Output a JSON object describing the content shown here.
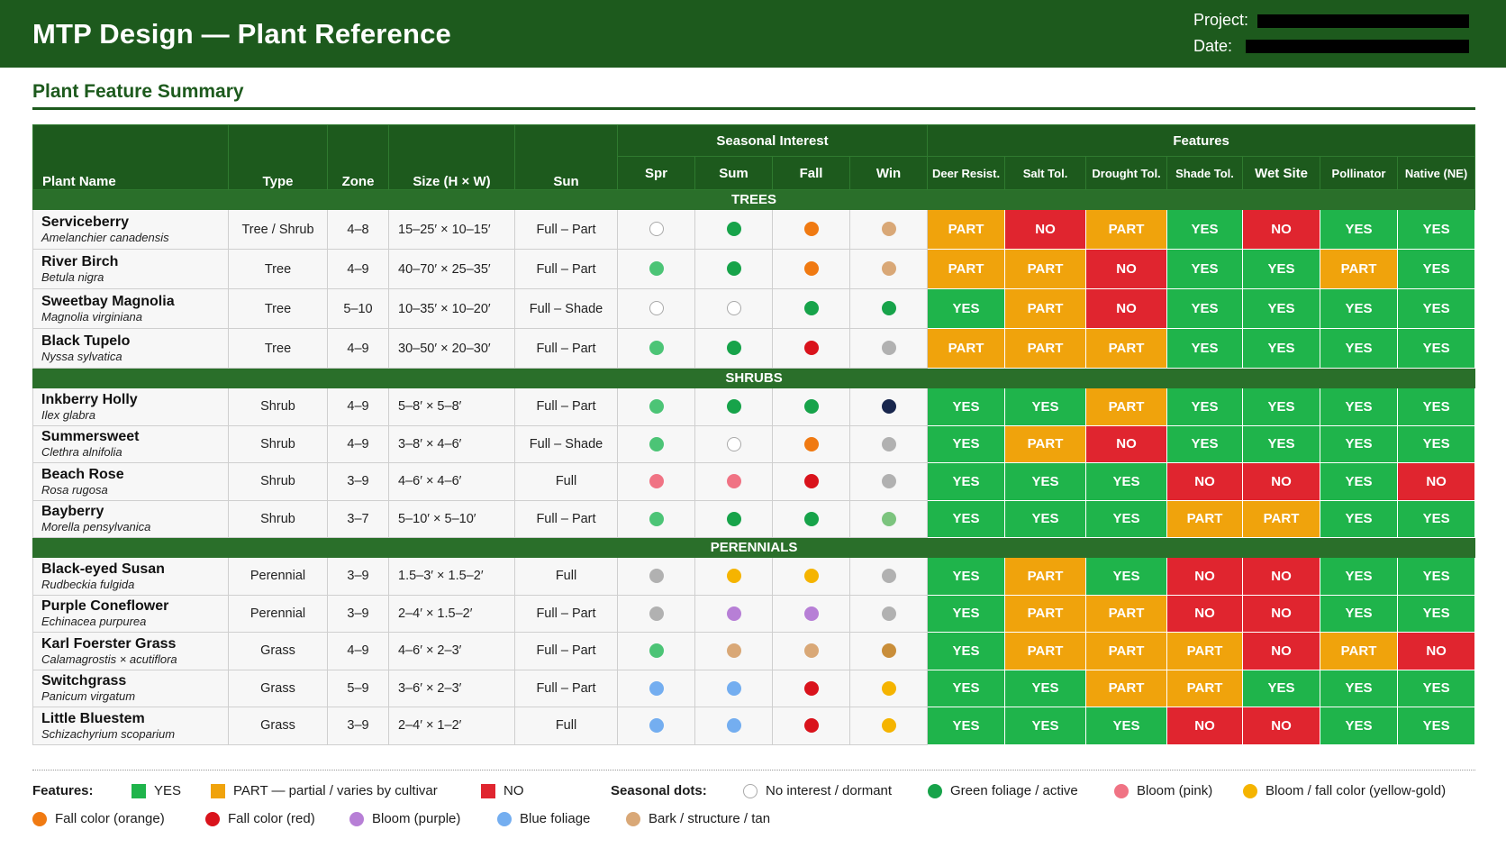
{
  "header": {
    "title": "MTP Design — Plant Reference",
    "project_label": "Project:",
    "date_label": "Date:"
  },
  "section_title": "Plant Feature Summary",
  "table": {
    "col_plant": "Plant Name",
    "col_type": "Type",
    "col_zone": "Zone",
    "col_size": "Size (H × W)",
    "col_sun": "Sun",
    "group_seasonal": "Seasonal Interest",
    "group_features": "Features",
    "seasons": [
      "Spr",
      "Sum",
      "Fall",
      "Win"
    ],
    "features": [
      "Deer Resist.",
      "Salt Tol.",
      "Drought Tol.",
      "Shade Tol.",
      "Wet Site",
      "Pollinator",
      "Native (NE)"
    ]
  },
  "colors": {
    "yes": "#1fb44b",
    "part": "#f0a30c",
    "no": "#e0252f",
    "header_green": "#1d5a1d",
    "dots": {
      "empty": "#ffffff",
      "green": "#17a34a",
      "lightgreen": "#4cc476",
      "sage": "#7cc47e",
      "pink": "#f07384",
      "orange": "#f07a12",
      "red": "#d9131c",
      "yellow": "#f5b400",
      "purple": "#b77fd6",
      "blue": "#74aef0",
      "tan": "#d9a877",
      "bronze": "#c98e3a",
      "gray": "#b1b1b1",
      "navy": "#18264d"
    }
  },
  "categories": [
    {
      "label": "TREES",
      "plants": [
        {
          "common": "Serviceberry",
          "latin": "Amelanchier canadensis",
          "type": "Tree / Shrub",
          "zone": "4–8",
          "size": "15–25′ × 10–15′",
          "sun": "Full – Part",
          "seasons": [
            "empty",
            "green",
            "orange",
            "tan"
          ],
          "features": [
            "PART",
            "NO",
            "PART",
            "YES",
            "NO",
            "YES",
            "YES"
          ]
        },
        {
          "common": "River Birch",
          "latin": "Betula nigra",
          "type": "Tree",
          "zone": "4–9",
          "size": "40–70′ × 25–35′",
          "sun": "Full – Part",
          "seasons": [
            "lightgreen",
            "green",
            "orange",
            "tan"
          ],
          "features": [
            "PART",
            "PART",
            "NO",
            "YES",
            "YES",
            "PART",
            "YES"
          ]
        },
        {
          "common": "Sweetbay Magnolia",
          "latin": "Magnolia virginiana",
          "type": "Tree",
          "zone": "5–10",
          "size": "10–35′ × 10–20′",
          "sun": "Full – Shade",
          "seasons": [
            "empty",
            "empty",
            "green",
            "green"
          ],
          "features": [
            "YES",
            "PART",
            "NO",
            "YES",
            "YES",
            "YES",
            "YES"
          ]
        },
        {
          "common": "Black Tupelo",
          "latin": "Nyssa sylvatica",
          "type": "Tree",
          "zone": "4–9",
          "size": "30–50′ × 20–30′",
          "sun": "Full – Part",
          "seasons": [
            "lightgreen",
            "green",
            "red",
            "gray"
          ],
          "features": [
            "PART",
            "PART",
            "PART",
            "YES",
            "YES",
            "YES",
            "YES"
          ]
        }
      ]
    },
    {
      "label": "SHRUBS",
      "plants": [
        {
          "common": "Inkberry Holly",
          "latin": "Ilex glabra",
          "type": "Shrub",
          "zone": "4–9",
          "size": "5–8′ × 5–8′",
          "sun": "Full – Part",
          "seasons": [
            "lightgreen",
            "green",
            "green",
            "navy"
          ],
          "features": [
            "YES",
            "YES",
            "PART",
            "YES",
            "YES",
            "YES",
            "YES"
          ]
        },
        {
          "common": "Summersweet",
          "latin": "Clethra alnifolia",
          "type": "Shrub",
          "zone": "4–9",
          "size": "3–8′ × 4–6′",
          "sun": "Full – Shade",
          "seasons": [
            "lightgreen",
            "empty",
            "orange",
            "gray"
          ],
          "features": [
            "YES",
            "PART",
            "NO",
            "YES",
            "YES",
            "YES",
            "YES"
          ]
        },
        {
          "common": "Beach Rose",
          "latin": "Rosa rugosa",
          "type": "Shrub",
          "zone": "3–9",
          "size": "4–6′ × 4–6′",
          "sun": "Full",
          "seasons": [
            "pink",
            "pink",
            "red",
            "gray"
          ],
          "features": [
            "YES",
            "YES",
            "YES",
            "NO",
            "NO",
            "YES",
            "NO"
          ]
        },
        {
          "common": "Bayberry",
          "latin": "Morella pensylvanica",
          "type": "Shrub",
          "zone": "3–7",
          "size": "5–10′ × 5–10′",
          "sun": "Full – Part",
          "seasons": [
            "lightgreen",
            "green",
            "green",
            "sage"
          ],
          "features": [
            "YES",
            "YES",
            "YES",
            "PART",
            "PART",
            "YES",
            "YES"
          ]
        }
      ]
    },
    {
      "label": "PERENNIALS",
      "plants": [
        {
          "common": "Black-eyed Susan",
          "latin": "Rudbeckia fulgida",
          "type": "Perennial",
          "zone": "3–9",
          "size": "1.5–3′ × 1.5–2′",
          "sun": "Full",
          "seasons": [
            "gray",
            "yellow",
            "yellow",
            "gray"
          ],
          "features": [
            "YES",
            "PART",
            "YES",
            "NO",
            "NO",
            "YES",
            "YES"
          ]
        },
        {
          "common": "Purple Coneflower",
          "latin": "Echinacea purpurea",
          "type": "Perennial",
          "zone": "3–9",
          "size": "2–4′ × 1.5–2′",
          "sun": "Full – Part",
          "seasons": [
            "gray",
            "purple",
            "purple",
            "gray"
          ],
          "features": [
            "YES",
            "PART",
            "PART",
            "NO",
            "NO",
            "YES",
            "YES"
          ]
        },
        {
          "common": "Karl Foerster Grass",
          "latin": "Calamagrostis × acutiflora",
          "type": "Grass",
          "zone": "4–9",
          "size": "4–6′ × 2–3′",
          "sun": "Full – Part",
          "seasons": [
            "lightgreen",
            "tan",
            "tan",
            "bronze"
          ],
          "features": [
            "YES",
            "PART",
            "PART",
            "PART",
            "NO",
            "PART",
            "NO"
          ]
        },
        {
          "common": "Switchgrass",
          "latin": "Panicum virgatum",
          "type": "Grass",
          "zone": "5–9",
          "size": "3–6′ × 2–3′",
          "sun": "Full – Part",
          "seasons": [
            "blue",
            "blue",
            "red",
            "yellow"
          ],
          "features": [
            "YES",
            "YES",
            "PART",
            "PART",
            "YES",
            "YES",
            "YES"
          ]
        },
        {
          "common": "Little Bluestem",
          "latin": "Schizachyrium scoparium",
          "type": "Grass",
          "zone": "3–9",
          "size": "2–4′ × 1–2′",
          "sun": "Full",
          "seasons": [
            "blue",
            "blue",
            "red",
            "yellow"
          ],
          "features": [
            "YES",
            "YES",
            "YES",
            "NO",
            "NO",
            "YES",
            "YES"
          ]
        }
      ]
    }
  ],
  "legend": {
    "features_label": "Features:",
    "yes": "YES",
    "part": "PART — partial / varies by cultivar",
    "no": "NO",
    "dots_label": "Seasonal dots:",
    "dots": [
      {
        "color": "empty",
        "text": "No interest / dormant"
      },
      {
        "color": "green",
        "text": "Green foliage / active"
      },
      {
        "color": "pink",
        "text": "Bloom (pink)"
      },
      {
        "color": "yellow",
        "text": "Bloom / fall color (yellow-gold)"
      },
      {
        "color": "orange",
        "text": "Fall color (orange)"
      },
      {
        "color": "red",
        "text": "Fall color (red)"
      },
      {
        "color": "purple",
        "text": "Bloom (purple)"
      },
      {
        "color": "blue",
        "text": "Blue foliage"
      },
      {
        "color": "tan",
        "text": "Bark / structure / tan"
      }
    ]
  }
}
